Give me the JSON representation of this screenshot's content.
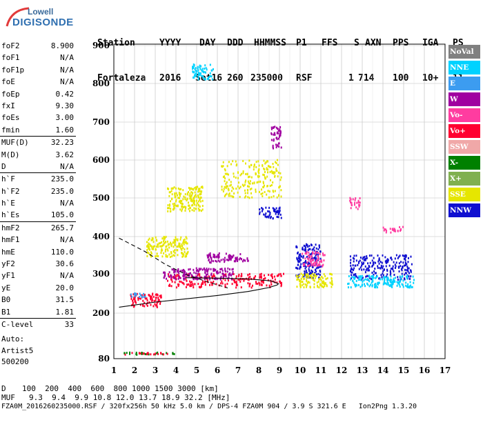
{
  "logo": {
    "line1": "Lowell",
    "line2": "DIGISONDE"
  },
  "header": {
    "labels": [
      "Station",
      "YYYY",
      "DAY",
      "DDD",
      "HHMMSS",
      "P1",
      "FFS",
      "S",
      "AXN",
      "PPS",
      "IGA",
      "PS"
    ],
    "values": [
      "Fortaleza",
      "2016",
      "Set16",
      "260",
      "235000",
      "RSF",
      "",
      "1",
      "714",
      "100",
      "10+",
      "11"
    ]
  },
  "params": [
    {
      "k": "foF2",
      "v": "8.900"
    },
    {
      "k": "foF1",
      "v": "N/A"
    },
    {
      "k": "foF1p",
      "v": "N/A"
    },
    {
      "k": "foE",
      "v": "N/A"
    },
    {
      "k": "foEp",
      "v": "0.42"
    },
    {
      "k": "fxI",
      "v": "9.30"
    },
    {
      "k": "foEs",
      "v": "3.00"
    },
    {
      "k": "fmin",
      "v": "1.60"
    },
    {
      "sep": true
    },
    {
      "k": "MUF(D)",
      "v": "32.23"
    },
    {
      "k": "M(D)",
      "v": "3.62"
    },
    {
      "k": "D",
      "v": "N/A"
    },
    {
      "sep": true
    },
    {
      "k": "h`F",
      "v": "235.0"
    },
    {
      "k": "h`F2",
      "v": "235.0"
    },
    {
      "k": "h`E",
      "v": "N/A"
    },
    {
      "k": "h`Es",
      "v": "105.0"
    },
    {
      "sep": true
    },
    {
      "k": "hmF2",
      "v": "265.7"
    },
    {
      "k": "hmF1",
      "v": "N/A"
    },
    {
      "k": "hmE",
      "v": "110.0"
    },
    {
      "k": "yF2",
      "v": "30.6"
    },
    {
      "k": "yF1",
      "v": "N/A"
    },
    {
      "k": "yE",
      "v": "20.0"
    },
    {
      "k": "B0",
      "v": "31.5"
    },
    {
      "k": "B1",
      "v": "1.81"
    },
    {
      "sep": true
    },
    {
      "k": "C-level",
      "v": "33"
    }
  ],
  "auto": {
    "l1": "Auto:",
    "l2": "Artist5",
    "l3": "500200"
  },
  "legend": [
    {
      "name": "NoVal",
      "color": "#808080"
    },
    {
      "name": "NNE",
      "color": "#00d2ff"
    },
    {
      "name": "E",
      "color": "#3c9cf0"
    },
    {
      "name": "W",
      "color": "#a000a0"
    },
    {
      "name": "Vo-",
      "color": "#ff3ca0"
    },
    {
      "name": "Vo+",
      "color": "#ff0030"
    },
    {
      "name": "SSW",
      "color": "#f0a8a8"
    },
    {
      "name": "X-",
      "color": "#008000"
    },
    {
      "name": "X+",
      "color": "#80b050"
    },
    {
      "name": "SSE",
      "color": "#e6e600"
    },
    {
      "name": "NNW",
      "color": "#1010d0"
    }
  ],
  "chart_data": {
    "type": "scatter",
    "title": "",
    "xlabel": "",
    "ylabel": "",
    "xlim": [
      1,
      17
    ],
    "ylim": [
      80,
      900
    ],
    "x_ticks": [
      1,
      2,
      3,
      4,
      5,
      6,
      7,
      8,
      9,
      10,
      11,
      12,
      13,
      14,
      15,
      16,
      17
    ],
    "y_ticks": [
      80,
      200,
      300,
      400,
      500,
      600,
      700,
      800,
      900
    ],
    "y_scale": "custom-ionogram",
    "grid": true,
    "legend_position": "right",
    "clusters": [
      {
        "series": "SSE",
        "x": [
          3.6,
          5.3
        ],
        "y": [
          465,
          530
        ]
      },
      {
        "series": "SSE",
        "x": [
          6.2,
          9.1
        ],
        "y": [
          500,
          600
        ]
      },
      {
        "series": "SSE",
        "x": [
          2.6,
          4.6
        ],
        "y": [
          345,
          400
        ]
      },
      {
        "series": "Vo+",
        "x": [
          3.6,
          9.2
        ],
        "y": [
          265,
          300
        ]
      },
      {
        "series": "Vo+",
        "x": [
          1.8,
          3.3
        ],
        "y": [
          215,
          250
        ]
      },
      {
        "series": "W",
        "x": [
          3.4,
          6.8
        ],
        "y": [
          285,
          315
        ]
      },
      {
        "series": "W",
        "x": [
          5.5,
          7.5
        ],
        "y": [
          330,
          355
        ]
      },
      {
        "series": "NNW",
        "x": [
          8.0,
          9.1
        ],
        "y": [
          445,
          475
        ]
      },
      {
        "series": "NNW",
        "x": [
          9.8,
          11.0
        ],
        "y": [
          290,
          380
        ]
      },
      {
        "series": "SSE",
        "x": [
          9.8,
          11.6
        ],
        "y": [
          265,
          300
        ]
      },
      {
        "series": "Vo-",
        "x": [
          10.1,
          11.2
        ],
        "y": [
          320,
          360
        ]
      },
      {
        "series": "NNW",
        "x": [
          12.4,
          15.4
        ],
        "y": [
          285,
          350
        ]
      },
      {
        "series": "NNE",
        "x": [
          12.3,
          15.5
        ],
        "y": [
          265,
          295
        ]
      },
      {
        "series": "X-",
        "x": [
          1.5,
          4.0
        ],
        "y": [
          90,
          96
        ]
      },
      {
        "series": "Vo+",
        "x": [
          1.5,
          3.6
        ],
        "y": [
          90,
          95
        ]
      },
      {
        "series": "E",
        "x": [
          1.8,
          2.6
        ],
        "y": [
          240,
          250
        ]
      },
      {
        "series": "NNE",
        "x": [
          4.8,
          5.8
        ],
        "y": [
          810,
          850
        ]
      },
      {
        "series": "W",
        "x": [
          8.6,
          9.1
        ],
        "y": [
          630,
          690
        ]
      },
      {
        "series": "Vo-",
        "x": [
          12.4,
          12.9
        ],
        "y": [
          470,
          500
        ]
      },
      {
        "series": "Vo-",
        "x": [
          14.0,
          15.0
        ],
        "y": [
          410,
          425
        ]
      }
    ],
    "lines": [
      {
        "style": "solid",
        "points": [
          [
            1.25,
            215
          ],
          [
            3.0,
            228
          ],
          [
            6.0,
            245
          ],
          [
            7.5,
            255
          ],
          [
            8.5,
            265
          ],
          [
            8.9,
            272
          ],
          [
            8.95,
            275
          ],
          [
            8.6,
            282
          ],
          [
            7.5,
            287
          ],
          [
            6.0,
            289
          ],
          [
            4.5,
            290
          ]
        ]
      },
      {
        "style": "dashed",
        "points": [
          [
            1.25,
            396
          ],
          [
            2.5,
            360
          ],
          [
            3.5,
            325
          ],
          [
            4.5,
            298
          ],
          [
            5.5,
            280
          ],
          [
            6.5,
            264
          ]
        ]
      }
    ]
  },
  "footer": {
    "d_label": "D",
    "d_values": "100  200  400  600  800 1000 1500 3000 [km]",
    "muf_label": "MUF",
    "muf_values": "9.3  9.4  9.9 10.8 12.0 13.7 18.9 32.2 [MHz]",
    "bottom": "FZA0M_2016260235000.RSF / 320fx256h 50 kHz 5.0 km / DPS-4 FZA0M 904 / 3.9 S 321.6 E   Ion2Png 1.3.20"
  }
}
